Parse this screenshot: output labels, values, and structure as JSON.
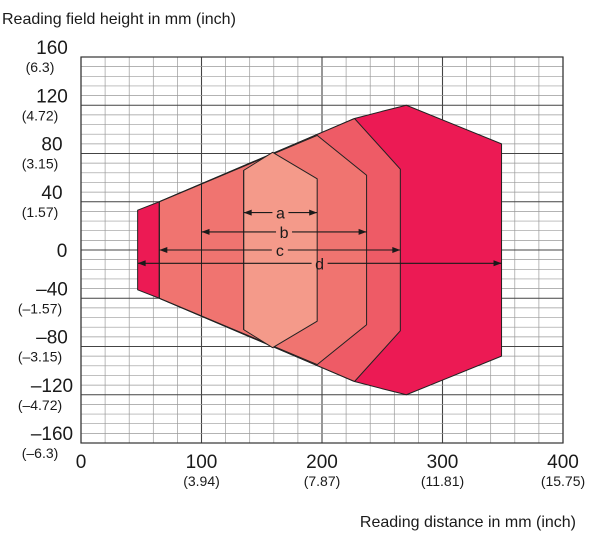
{
  "chart_data": {
    "type": "area",
    "title": "",
    "ylabel": "Reading field height in mm (inch)",
    "xlabel": "Reading distance in mm (inch)",
    "xlim": [
      0,
      400
    ],
    "ylim": [
      -160,
      160
    ],
    "grid": true,
    "x_ticks": [
      {
        "value": 0,
        "label": "0",
        "sub": ""
      },
      {
        "value": 100,
        "label": "100",
        "sub": "(3.94)"
      },
      {
        "value": 200,
        "label": "200",
        "sub": "(7.87)"
      },
      {
        "value": 300,
        "label": "300",
        "sub": "(11.81)"
      },
      {
        "value": 400,
        "label": "400",
        "sub": "(15.75)"
      }
    ],
    "y_ticks": [
      {
        "value": 160,
        "label": "160",
        "sub": "(6.3)"
      },
      {
        "value": 120,
        "label": "120",
        "sub": "(4.72)"
      },
      {
        "value": 80,
        "label": "80",
        "sub": "(3.15)"
      },
      {
        "value": 40,
        "label": "40",
        "sub": "(1.57)"
      },
      {
        "value": 0,
        "label": "0",
        "sub": ""
      },
      {
        "value": -40,
        "label": "–40",
        "sub": "(–1.57)"
      },
      {
        "value": -80,
        "label": "–80",
        "sub": "(–3.15)"
      },
      {
        "value": -120,
        "label": "–120",
        "sub": "(–4.72)"
      },
      {
        "value": -160,
        "label": "–160",
        "sub": "(–6.3)"
      }
    ],
    "fields": [
      {
        "name": "d",
        "color": "#EC1A54",
        "points": [
          [
            47,
            33
          ],
          [
            65,
            40
          ],
          [
            227,
            109
          ],
          [
            250,
            115
          ],
          [
            270,
            120
          ],
          [
            349,
            88
          ],
          [
            349,
            -88
          ],
          [
            270,
            -120
          ],
          [
            250,
            -115
          ],
          [
            227,
            -109
          ],
          [
            65,
            -40
          ],
          [
            47,
            -33
          ]
        ]
      },
      {
        "name": "c",
        "color": "#EE5B66",
        "points": [
          [
            65,
            40
          ],
          [
            227,
            109
          ],
          [
            265,
            67
          ],
          [
            265,
            -67
          ],
          [
            227,
            -109
          ],
          [
            65,
            -40
          ]
        ]
      },
      {
        "name": "b",
        "color": "#F07470",
        "points": [
          [
            65,
            40
          ],
          [
            196,
            95
          ],
          [
            237,
            62
          ],
          [
            237,
            -62
          ],
          [
            196,
            -95
          ],
          [
            65,
            -40
          ]
        ]
      },
      {
        "name": "a",
        "color": "#F49A8A",
        "points": [
          [
            135,
            66
          ],
          [
            159,
            81
          ],
          [
            196,
            59
          ],
          [
            196,
            -59
          ],
          [
            159,
            -81
          ],
          [
            135,
            -66
          ]
        ]
      }
    ],
    "dividers": [
      {
        "x": 65,
        "y_top": 40,
        "y_bottom": -40
      },
      {
        "x": 100,
        "y_top": 55,
        "y_bottom": -55
      },
      {
        "x": 135,
        "y_top": 66,
        "y_bottom": -66
      }
    ],
    "dimensions": [
      {
        "label": "a",
        "x_start": 135,
        "x_end": 196,
        "y": 31
      },
      {
        "label": "b",
        "x_start": 100,
        "x_end": 237,
        "y": 15
      },
      {
        "label": "c",
        "x_start": 65,
        "x_end": 265,
        "y": 0
      },
      {
        "label": "d",
        "x_start": 47,
        "x_end": 349,
        "y": -11
      }
    ]
  }
}
